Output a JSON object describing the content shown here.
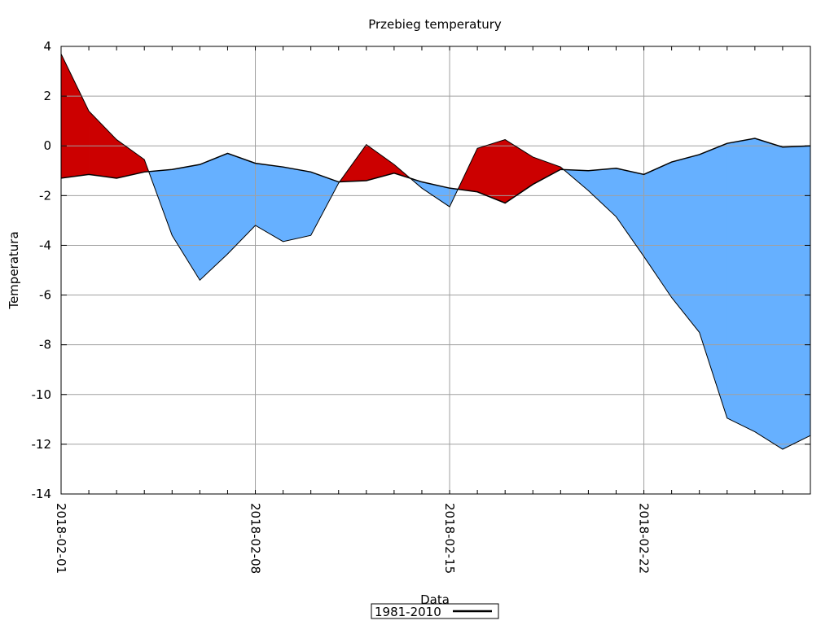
{
  "chart_data": {
    "type": "area",
    "title": "Przebieg temperatury",
    "xlabel": "Data",
    "ylabel": "Temperatura",
    "ylim": [
      -14,
      4
    ],
    "xlim": [
      "2018-02-01",
      "2018-02-28"
    ],
    "yticks": [
      "4",
      "2",
      "0",
      "-2",
      "-4",
      "-6",
      "-8",
      "-10",
      "-12",
      "-14"
    ],
    "xticks": [
      "2018-02-01",
      "2018-02-08",
      "2018-02-15",
      "2018-02-22"
    ],
    "grid": true,
    "legend_position": "bottom-center",
    "x": [
      "2018-02-01",
      "2018-02-02",
      "2018-02-03",
      "2018-02-04",
      "2018-02-05",
      "2018-02-06",
      "2018-02-07",
      "2018-02-08",
      "2018-02-09",
      "2018-02-10",
      "2018-02-11",
      "2018-02-12",
      "2018-02-13",
      "2018-02-14",
      "2018-02-15",
      "2018-02-16",
      "2018-02-17",
      "2018-02-18",
      "2018-02-19",
      "2018-02-20",
      "2018-02-21",
      "2018-02-22",
      "2018-02-23",
      "2018-02-24",
      "2018-02-25",
      "2018-02-26",
      "2018-02-27",
      "2018-02-28"
    ],
    "series": [
      {
        "name": "",
        "values": [
          3.7,
          1.4,
          0.25,
          -0.55,
          -3.6,
          -5.4,
          -4.35,
          -3.2,
          -3.85,
          -3.6,
          -1.5,
          0.05,
          -0.75,
          -1.7,
          -2.45,
          -0.1,
          0.25,
          -0.45,
          -0.85,
          -1.8,
          -2.85,
          -4.45,
          -6.1,
          -7.5,
          -10.95,
          -11.5,
          -12.2,
          -11.65
        ]
      },
      {
        "name": "1981-2010",
        "values": [
          -1.3,
          -1.15,
          -1.3,
          -1.05,
          -0.95,
          -0.75,
          -0.3,
          -0.7,
          -0.85,
          -1.05,
          -1.45,
          -1.4,
          -1.1,
          -1.45,
          -1.7,
          -1.85,
          -2.3,
          -1.55,
          -0.95,
          -1.0,
          -0.9,
          -1.15,
          -0.65,
          -0.35,
          0.1,
          0.3,
          -0.05,
          0.0
        ]
      }
    ],
    "colors": {
      "above": "#cc0000",
      "below": "#66b0ff",
      "baseline": "#000000",
      "grid": "#a0a0a0"
    }
  }
}
